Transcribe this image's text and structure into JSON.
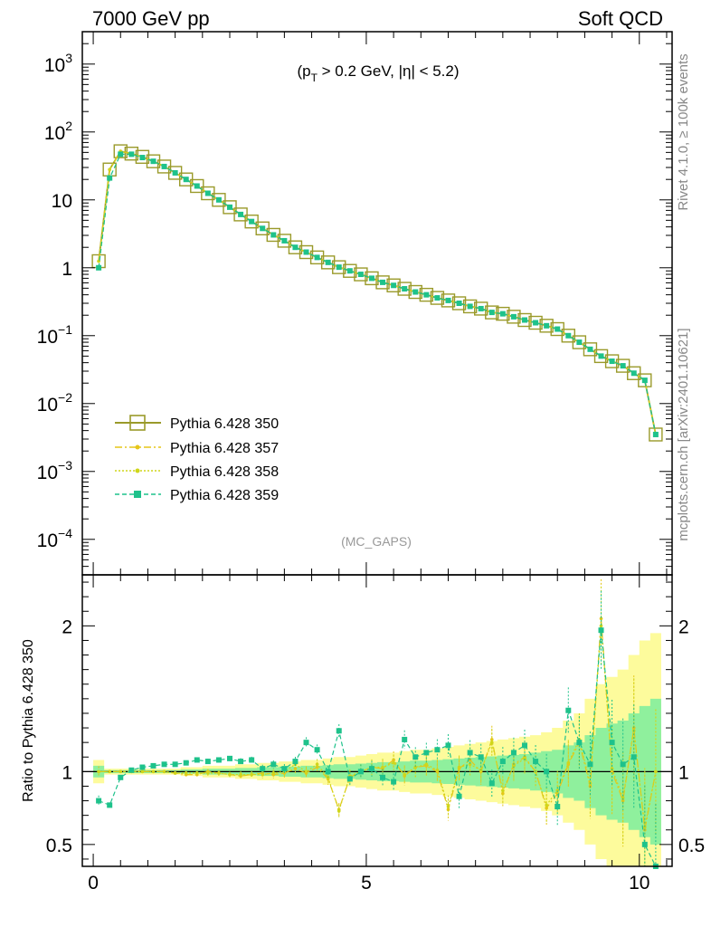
{
  "header": {
    "left": "7000 GeV pp",
    "right": "Soft QCD"
  },
  "chart_data": [
    {
      "type": "line",
      "panel": "main",
      "title": "(p_T > 0.2 GeV, |η| < 5.2)",
      "title_parts": {
        "pre": "(p",
        "sub": "T",
        "post": " > 0.2 GeV, |η| < 5.2)"
      },
      "yscale": "log",
      "ylim": [
        3e-05,
        3000
      ],
      "xlim": [
        -0.2,
        10.6
      ],
      "yticks": [
        {
          "v": 0.0001,
          "base": "10",
          "exp": "−4"
        },
        {
          "v": 0.001,
          "base": "10",
          "exp": "−3"
        },
        {
          "v": 0.01,
          "base": "10",
          "exp": "−2"
        },
        {
          "v": 0.1,
          "base": "10",
          "exp": "−1"
        },
        {
          "v": 1,
          "base": "1",
          "exp": ""
        },
        {
          "v": 10,
          "base": "10",
          "exp": ""
        },
        {
          "v": 100,
          "base": "10",
          "exp": "2"
        },
        {
          "v": 1000,
          "base": "10",
          "exp": "3"
        }
      ],
      "xticks": [
        0,
        5,
        10
      ],
      "x": [
        0.1,
        0.3,
        0.5,
        0.7,
        0.9,
        1.1,
        1.3,
        1.5,
        1.7,
        1.9,
        2.1,
        2.3,
        2.5,
        2.7,
        2.9,
        3.1,
        3.3,
        3.5,
        3.7,
        3.9,
        4.1,
        4.3,
        4.5,
        4.7,
        4.9,
        5.1,
        5.3,
        5.5,
        5.7,
        5.9,
        6.1,
        6.3,
        6.5,
        6.7,
        6.9,
        7.1,
        7.3,
        7.5,
        7.7,
        7.9,
        8.1,
        8.3,
        8.5,
        8.7,
        8.9,
        9.1,
        9.3,
        9.5,
        9.7,
        9.9,
        10.1,
        10.3
      ],
      "series": [
        {
          "name": "Pythia 6.428 350",
          "color": "#9a9a2a",
          "style": "solid-open-square",
          "values": [
            1.25,
            28,
            52,
            48,
            43,
            37,
            31,
            25,
            20,
            16,
            12.5,
            10,
            7.8,
            6.1,
            4.8,
            3.8,
            3.05,
            2.5,
            2.0,
            1.7,
            1.42,
            1.2,
            1.02,
            0.9,
            0.8,
            0.7,
            0.61,
            0.55,
            0.49,
            0.44,
            0.4,
            0.36,
            0.33,
            0.3,
            0.27,
            0.25,
            0.22,
            0.21,
            0.19,
            0.17,
            0.155,
            0.14,
            0.125,
            0.1,
            0.08,
            0.063,
            0.05,
            0.042,
            0.036,
            0.028,
            0.022,
            0.0035
          ]
        },
        {
          "name": "Pythia 6.428 357",
          "color": "#e6c619",
          "style": "dashdot",
          "values": [
            1.25,
            28,
            52,
            48,
            43,
            37,
            31,
            25,
            20,
            16,
            12.5,
            10,
            7.8,
            6.1,
            4.8,
            3.8,
            3.05,
            2.5,
            2.0,
            1.7,
            1.42,
            1.2,
            1.02,
            0.9,
            0.8,
            0.7,
            0.61,
            0.55,
            0.49,
            0.44,
            0.4,
            0.36,
            0.33,
            0.3,
            0.27,
            0.25,
            0.22,
            0.21,
            0.19,
            0.17,
            0.155,
            0.14,
            0.125,
            0.1,
            0.08,
            0.063,
            0.05,
            0.042,
            0.036,
            0.028,
            0.022,
            0.0035
          ]
        },
        {
          "name": "Pythia 6.428 358",
          "color": "#cfd61a",
          "style": "dotted",
          "values": [
            1.25,
            28,
            52,
            48,
            43,
            37,
            31,
            25,
            20,
            16,
            12.5,
            10,
            7.8,
            6.1,
            4.8,
            3.8,
            3.05,
            2.5,
            2.0,
            1.7,
            1.42,
            1.2,
            1.02,
            0.9,
            0.8,
            0.7,
            0.61,
            0.55,
            0.49,
            0.44,
            0.4,
            0.36,
            0.33,
            0.3,
            0.27,
            0.25,
            0.22,
            0.21,
            0.19,
            0.17,
            0.155,
            0.14,
            0.125,
            0.1,
            0.08,
            0.063,
            0.05,
            0.042,
            0.036,
            0.028,
            0.022,
            0.0035
          ]
        },
        {
          "name": "Pythia 6.428 359",
          "color": "#1ec28b",
          "style": "dashed-filled-square",
          "values": [
            1.0,
            21,
            47,
            47,
            42,
            37,
            31,
            25,
            20,
            16,
            12.5,
            10,
            7.8,
            6.1,
            4.8,
            3.8,
            3.05,
            2.5,
            2.0,
            1.7,
            1.42,
            1.2,
            1.02,
            0.9,
            0.8,
            0.7,
            0.61,
            0.55,
            0.49,
            0.44,
            0.4,
            0.36,
            0.33,
            0.3,
            0.27,
            0.25,
            0.22,
            0.21,
            0.19,
            0.17,
            0.155,
            0.14,
            0.125,
            0.1,
            0.08,
            0.063,
            0.05,
            0.042,
            0.036,
            0.028,
            0.022,
            0.0035
          ]
        }
      ]
    },
    {
      "type": "line",
      "panel": "ratio",
      "ylabel": "Ratio to Pythia 6.428 350",
      "ylim": [
        0.35,
        2.35
      ],
      "xlim": [
        -0.2,
        10.6
      ],
      "yticks": [
        0.5,
        1,
        2
      ],
      "xticks": [
        0,
        5,
        10
      ],
      "x": [
        0.1,
        0.3,
        0.5,
        0.7,
        0.9,
        1.1,
        1.3,
        1.5,
        1.7,
        1.9,
        2.1,
        2.3,
        2.5,
        2.7,
        2.9,
        3.1,
        3.3,
        3.5,
        3.7,
        3.9,
        4.1,
        4.3,
        4.5,
        4.7,
        4.9,
        5.1,
        5.3,
        5.5,
        5.7,
        5.9,
        6.1,
        6.3,
        6.5,
        6.7,
        6.9,
        7.1,
        7.3,
        7.5,
        7.7,
        7.9,
        8.1,
        8.3,
        8.5,
        8.7,
        8.9,
        9.1,
        9.3,
        9.5,
        9.7,
        9.9,
        10.1,
        10.3
      ],
      "band_yellow": [
        0.08,
        0.02,
        0.02,
        0.02,
        0.02,
        0.02,
        0.02,
        0.02,
        0.03,
        0.03,
        0.04,
        0.04,
        0.04,
        0.05,
        0.05,
        0.06,
        0.06,
        0.07,
        0.07,
        0.08,
        0.08,
        0.09,
        0.1,
        0.1,
        0.11,
        0.12,
        0.13,
        0.13,
        0.14,
        0.15,
        0.15,
        0.16,
        0.17,
        0.18,
        0.19,
        0.2,
        0.21,
        0.22,
        0.23,
        0.24,
        0.25,
        0.27,
        0.3,
        0.35,
        0.4,
        0.5,
        0.6,
        0.65,
        0.7,
        0.8,
        0.9,
        0.95
      ],
      "band_green": [
        0.04,
        0.01,
        0.01,
        0.01,
        0.01,
        0.01,
        0.01,
        0.01,
        0.015,
        0.015,
        0.02,
        0.02,
        0.02,
        0.025,
        0.025,
        0.03,
        0.03,
        0.035,
        0.035,
        0.04,
        0.04,
        0.045,
        0.05,
        0.05,
        0.055,
        0.06,
        0.065,
        0.065,
        0.07,
        0.075,
        0.075,
        0.08,
        0.085,
        0.09,
        0.095,
        0.1,
        0.105,
        0.11,
        0.115,
        0.12,
        0.13,
        0.14,
        0.15,
        0.18,
        0.2,
        0.25,
        0.3,
        0.33,
        0.35,
        0.4,
        0.45,
        0.5
      ],
      "series": [
        {
          "name": "Pythia 6.428 357",
          "color": "#e6c619",
          "style": "dashdot",
          "values": [
            1.0,
            1.0,
            1.0,
            1.0,
            1.0,
            1.0,
            1.0,
            0.99,
            0.98,
            0.98,
            1.0,
            0.99,
            0.98,
            0.97,
            0.98,
            0.99,
            0.98,
            0.99,
            1.02,
            0.99,
            1.03,
            0.95,
            0.74,
            0.96,
            1.0,
            1.03,
            1.02,
            1.08,
            0.97,
            1.03,
            1.04,
            1.0,
            0.74,
            1.02,
            1.08,
            1.0,
            1.22,
            0.85,
            1.05,
            1.1,
            1.0,
            0.75,
            0.85,
            1.05,
            1.2,
            0.9,
            2.05,
            1.0,
            0.8,
            1.3,
            0.6,
            1.0
          ]
        },
        {
          "name": "Pythia 6.428 358",
          "color": "#cfd61a",
          "style": "dotted",
          "values": [
            1.0,
            1.0,
            1.0,
            1.0,
            1.0,
            1.0,
            1.0,
            0.99,
            0.99,
            0.99,
            0.99,
            0.99,
            0.98,
            0.98,
            0.98,
            0.98,
            0.99,
            1.0,
            1.05,
            1.0,
            1.05,
            0.96,
            0.73,
            0.97,
            1.0,
            1.03,
            1.03,
            1.06,
            0.98,
            1.03,
            1.05,
            1.01,
            0.76,
            1.03,
            1.05,
            1.01,
            1.2,
            0.87,
            1.04,
            1.09,
            1.0,
            0.77,
            0.87,
            1.06,
            1.22,
            0.92,
            2.0,
            1.02,
            0.82,
            1.28,
            0.62,
            1.0
          ]
        },
        {
          "name": "Pythia 6.428 359",
          "color": "#1ec28b",
          "style": "dashed-filled-square",
          "values": [
            0.8,
            0.77,
            0.96,
            1.01,
            1.03,
            1.04,
            1.05,
            1.05,
            1.06,
            1.08,
            1.07,
            1.08,
            1.09,
            1.07,
            1.08,
            1.02,
            1.05,
            1.02,
            1.07,
            1.2,
            1.15,
            1.0,
            1.28,
            0.95,
            1.0,
            1.02,
            0.96,
            0.93,
            1.22,
            1.1,
            1.13,
            1.15,
            1.18,
            0.83,
            1.13,
            1.1,
            0.92,
            1.07,
            1.13,
            1.18,
            1.07,
            1.0,
            0.76,
            1.42,
            1.2,
            1.05,
            1.97,
            1.2,
            1.05,
            1.1,
            0.5,
            0.35
          ]
        }
      ]
    }
  ],
  "legend": [
    {
      "label": "Pythia 6.428 350"
    },
    {
      "label": "Pythia 6.428 357"
    },
    {
      "label": "Pythia 6.428 358"
    },
    {
      "label": "Pythia 6.428 359"
    }
  ],
  "analysis_tag": "(MC_GAPS)",
  "side_text": {
    "top": "Rivet 4.1.0, ≥ 100k events",
    "bottom": "mcplots.cern.ch [arXiv:2401.10621]"
  }
}
